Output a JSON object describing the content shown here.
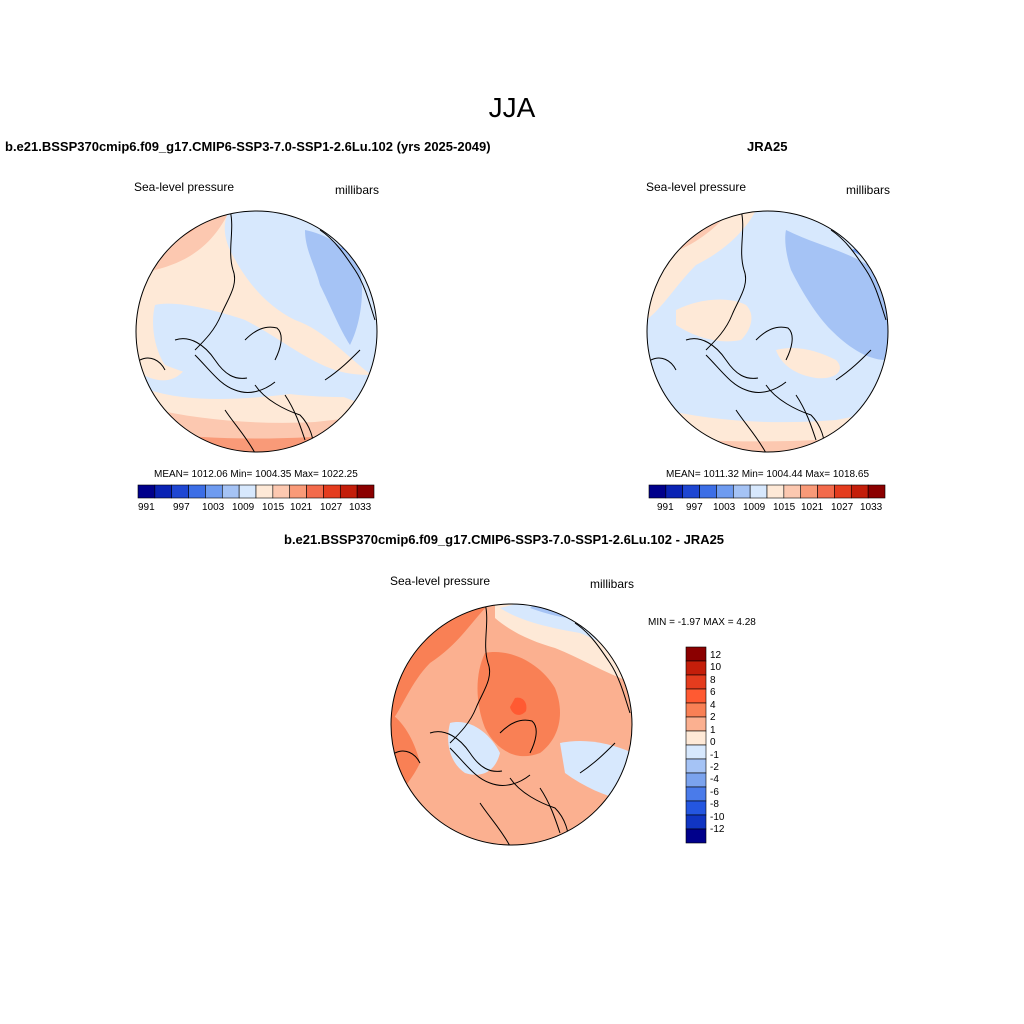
{
  "figure_title": "JJA",
  "panels": [
    {
      "title": "b.e21.BSSP370cmip6.f09_g17.CMIP6-SSP3-7.0-SSP1-2.6Lu.102 (yrs 2025-2049)",
      "left_label": "Sea-level pressure",
      "right_label": "millibars",
      "stats": "MEAN= 1012.06  Min= 1004.35  Max= 1022.25",
      "colorbar_ticks": [
        "991",
        "997",
        "1003",
        "1009",
        "1015",
        "1021",
        "1027",
        "1033"
      ]
    },
    {
      "title": "JRA25",
      "left_label": "Sea-level pressure",
      "right_label": "millibars",
      "stats": "MEAN= 1011.32  Min= 1004.44  Max= 1018.65",
      "colorbar_ticks": [
        "991",
        "997",
        "1003",
        "1009",
        "1015",
        "1021",
        "1027",
        "1033"
      ]
    },
    {
      "title": "b.e21.BSSP370cmip6.f09_g17.CMIP6-SSP3-7.0-SSP1-2.6Lu.102 - JRA25",
      "left_label": "Sea-level pressure",
      "right_label": "millibars",
      "stats": "MIN =  -1.97 MAX =   4.28",
      "colorbar_ticks": [
        "12",
        "10",
        "8",
        "6",
        "4",
        "2",
        "1",
        "0",
        "-1",
        "-2",
        "-4",
        "-6",
        "-8",
        "-10",
        "-12"
      ]
    }
  ],
  "colors": {
    "abs_palette": [
      "#00008b",
      "#0a23b4",
      "#1e46d2",
      "#3c6ee6",
      "#6e9bf0",
      "#a5c3f5",
      "#d7e8fd",
      "#fee9d7",
      "#fcc8b0",
      "#f99a78",
      "#f36a4b",
      "#e43c1e",
      "#c41e0a",
      "#8b0000"
    ],
    "diff_palette": [
      "#8b0000",
      "#c41e0a",
      "#e43c1e",
      "#ff5a32",
      "#f98055",
      "#fbb090",
      "#fee9d7",
      "#d7e8fd",
      "#a5c3f5",
      "#7ba3ee",
      "#4a7bea",
      "#2456e0",
      "#1035c2",
      "#00008b"
    ]
  }
}
